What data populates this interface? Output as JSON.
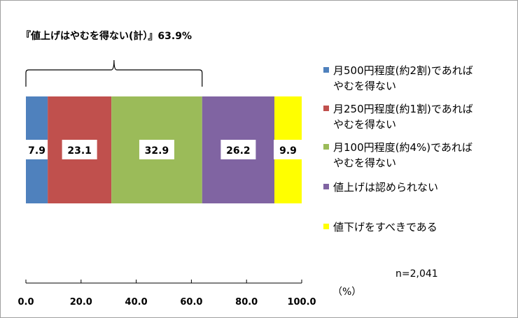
{
  "chart_data": {
    "type": "bar",
    "orientation": "horizontal",
    "stacked": true,
    "xlim": [
      0,
      100
    ],
    "x_ticks": [
      "0.0",
      "20.0",
      "40.0",
      "60.0",
      "80.0",
      "100.0"
    ],
    "x_unit": "（%）",
    "sample_size": "n=2,041",
    "annotation": {
      "label": "『値上げはやむを得ない(計）』63.9%",
      "from": 0,
      "to": 63.9
    },
    "segments": [
      {
        "name": "月500円程度(約2割)であればやむを得ない",
        "legend_lines": [
          "月500円程度(約2割)であれば",
          "やむを得ない"
        ],
        "value": 7.9,
        "label": "7.9",
        "color": "#4f81bd"
      },
      {
        "name": "月250円程度(約1割)であればやむを得ない",
        "legend_lines": [
          "月250円程度(約1割)であれば",
          "やむを得ない"
        ],
        "value": 23.1,
        "label": "23.1",
        "color": "#c0504d"
      },
      {
        "name": "月100円程度(約4%)であればやむを得ない",
        "legend_lines": [
          "月100円程度(約4%)であれば",
          "やむを得ない"
        ],
        "value": 32.9,
        "label": "32.9",
        "color": "#9bbb59"
      },
      {
        "name": "値上げは認められない",
        "legend_lines": [
          "値上げは認められない"
        ],
        "value": 26.2,
        "label": "26.2",
        "color": "#8064a2"
      },
      {
        "name": "値下げをすべきである",
        "legend_lines": [
          "値下げをすべきである"
        ],
        "value": 9.9,
        "label": "9.9",
        "color": "#ffff00"
      }
    ]
  }
}
